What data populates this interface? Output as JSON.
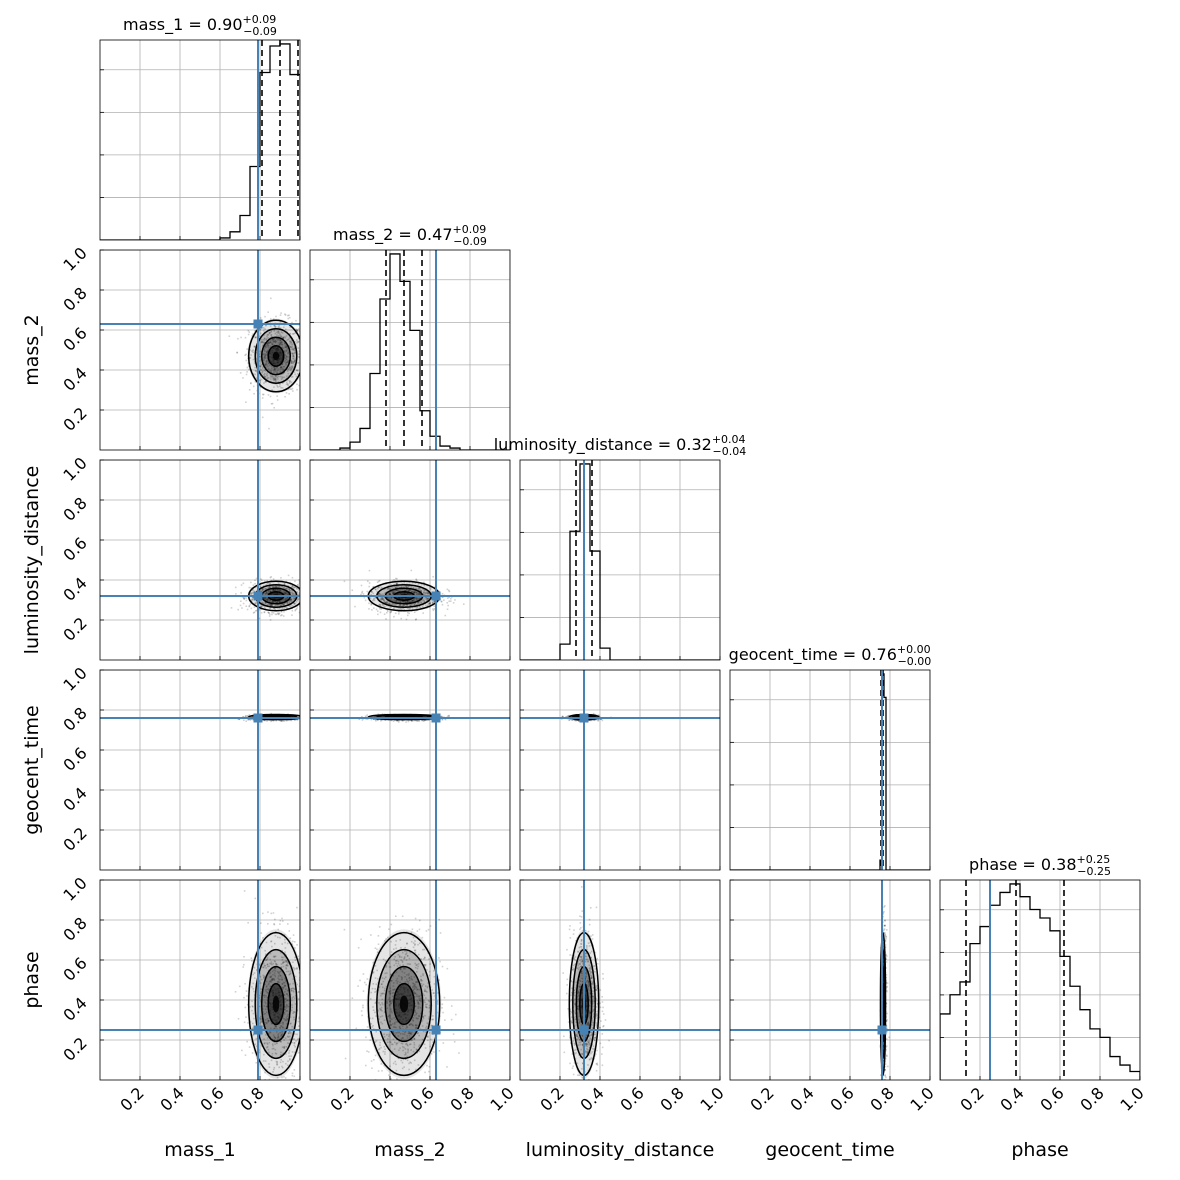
{
  "chart_data": {
    "type": "corner",
    "parameters": [
      "mass_1",
      "mass_2",
      "luminosity_distance",
      "geocent_time",
      "phase"
    ],
    "axis_labels": [
      "mass_1",
      "mass_2",
      "luminosity_distance",
      "geocent_time",
      "phase"
    ],
    "xlim": [
      0,
      1
    ],
    "ylim": [
      0,
      1
    ],
    "x_ticks": [
      "0.2",
      "0.4",
      "0.6",
      "0.8",
      "1.0"
    ],
    "y_ticks": [
      "0.2",
      "0.4",
      "0.6",
      "0.8",
      "1.0"
    ],
    "truth_color": "#4682b4",
    "grid": true,
    "injection": {
      "mass_1": 0.79,
      "mass_2": 0.63,
      "luminosity_distance": 0.32,
      "geocent_time": 0.76,
      "phase": 0.25
    },
    "titles": [
      {
        "name": "mass_1",
        "median": "0.90",
        "plus": "+0.09",
        "minus": "−0.09"
      },
      {
        "name": "mass_2",
        "median": "0.47",
        "plus": "+0.09",
        "minus": "−0.09"
      },
      {
        "name": "luminosity_distance",
        "median": "0.32",
        "plus": "+0.04",
        "minus": "−0.04"
      },
      {
        "name": "geocent_time",
        "median": "0.76",
        "plus": "+0.00",
        "minus": "−0.00"
      },
      {
        "name": "phase",
        "median": "0.38",
        "plus": "+0.25",
        "minus": "−0.25"
      }
    ],
    "quantiles": {
      "mass_1": [
        0.81,
        0.9,
        0.99
      ],
      "mass_2": [
        0.38,
        0.47,
        0.56
      ],
      "luminosity_distance": [
        0.28,
        0.32,
        0.36
      ],
      "geocent_time": [
        0.755,
        0.76,
        0.765
      ],
      "phase": [
        0.13,
        0.38,
        0.62
      ]
    },
    "histograms": {
      "mass_1": {
        "edges": [
          0.6,
          0.65,
          0.7,
          0.75,
          0.8,
          0.85,
          0.9,
          0.95,
          1.0
        ],
        "counts": [
          0.01,
          0.04,
          0.12,
          0.36,
          0.82,
          0.95,
          0.96,
          0.81
        ]
      },
      "mass_2": {
        "edges": [
          0.15,
          0.2,
          0.25,
          0.3,
          0.35,
          0.4,
          0.45,
          0.5,
          0.55,
          0.6,
          0.65,
          0.7,
          0.75
        ],
        "counts": [
          0.01,
          0.04,
          0.11,
          0.39,
          0.77,
          1.0,
          0.86,
          0.61,
          0.2,
          0.07,
          0.02,
          0.01
        ]
      },
      "luminosity_distance": {
        "edges": [
          0.2,
          0.25,
          0.3,
          0.35,
          0.4,
          0.45
        ],
        "counts": [
          0.08,
          0.65,
          0.99,
          0.55,
          0.06
        ]
      },
      "geocent_time": {
        "edges": [
          0.75,
          0.76,
          0.77,
          0.78
        ],
        "counts": [
          0.05,
          1.0,
          0.88
        ]
      },
      "phase": {
        "edges": [
          0.0,
          0.05,
          0.1,
          0.15,
          0.2,
          0.25,
          0.3,
          0.35,
          0.4,
          0.45,
          0.5,
          0.55,
          0.6,
          0.65,
          0.7,
          0.75,
          0.8,
          0.85,
          0.9,
          0.95,
          1.0
        ],
        "counts": [
          0.31,
          0.4,
          0.46,
          0.64,
          0.72,
          0.82,
          0.88,
          0.92,
          0.86,
          0.8,
          0.76,
          0.7,
          0.58,
          0.44,
          0.33,
          0.24,
          0.2,
          0.11,
          0.07,
          0.04
        ]
      }
    },
    "posterior_2d": {
      "mass_1": {
        "mean": 0.88,
        "sd": 0.065
      },
      "mass_2": {
        "mean": 0.47,
        "sd": 0.085
      },
      "luminosity_distance": {
        "mean": 0.32,
        "sd": 0.035
      },
      "geocent_time": {
        "mean": 0.765,
        "sd": 0.006
      },
      "phase": {
        "mean": 0.38,
        "sd": 0.17
      }
    }
  }
}
